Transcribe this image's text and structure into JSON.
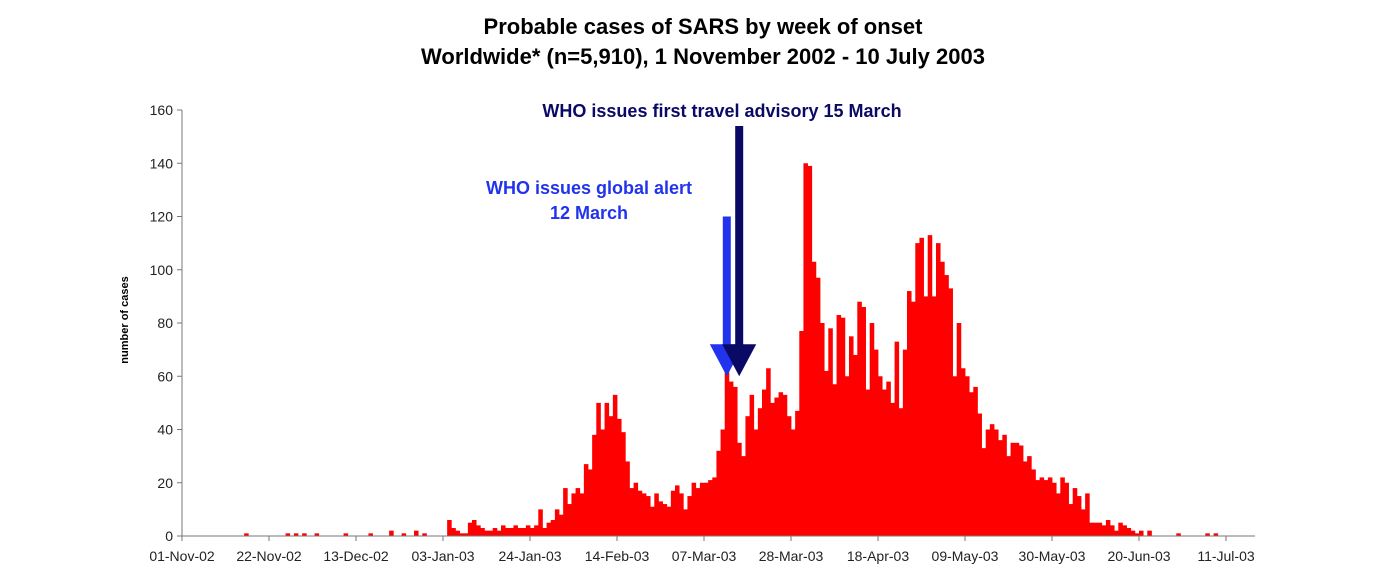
{
  "chart_data": {
    "type": "bar",
    "title": "Probable cases of SARS by week of onset",
    "subtitle": "Worldwide* (n=5,910), 1 November 2002 - 10 July 2003",
    "ylabel": "number of cases",
    "xlabel": "",
    "ylim": [
      0,
      160
    ],
    "y_ticks": [
      0,
      20,
      40,
      60,
      80,
      100,
      120,
      140,
      160
    ],
    "x_range_days": [
      "2002-11-01",
      "2003-07-18"
    ],
    "x_ticks": [
      {
        "date": "2002-11-01",
        "label": "01-Nov-02"
      },
      {
        "date": "2002-11-22",
        "label": "22-Nov-02"
      },
      {
        "date": "2002-12-13",
        "label": "13-Dec-02"
      },
      {
        "date": "2003-01-03",
        "label": "03-Jan-03"
      },
      {
        "date": "2003-01-24",
        "label": "24-Jan-03"
      },
      {
        "date": "2003-02-14",
        "label": "14-Feb-03"
      },
      {
        "date": "2003-03-07",
        "label": "07-Mar-03"
      },
      {
        "date": "2003-03-28",
        "label": "28-Mar-03"
      },
      {
        "date": "2003-04-18",
        "label": "18-Apr-03"
      },
      {
        "date": "2003-05-09",
        "label": "09-May-03"
      },
      {
        "date": "2003-05-30",
        "label": "30-May-03"
      },
      {
        "date": "2003-06-20",
        "label": "20-Jun-03"
      },
      {
        "date": "2003-07-11",
        "label": "11-Jul-03"
      }
    ],
    "series": [
      {
        "color": "#ff0000",
        "points": [
          [
            "2002-11-16",
            1
          ],
          [
            "2002-11-26",
            1
          ],
          [
            "2002-11-28",
            1
          ],
          [
            "2002-11-30",
            1
          ],
          [
            "2002-12-03",
            1
          ],
          [
            "2002-12-10",
            1
          ],
          [
            "2002-12-16",
            1
          ],
          [
            "2002-12-21",
            2
          ],
          [
            "2002-12-24",
            1
          ],
          [
            "2002-12-27",
            2
          ],
          [
            "2002-12-29",
            1
          ],
          [
            "2003-01-04",
            6
          ],
          [
            "2003-01-05",
            3
          ],
          [
            "2003-01-06",
            2
          ],
          [
            "2003-01-07",
            1
          ],
          [
            "2003-01-08",
            1
          ],
          [
            "2003-01-09",
            5
          ],
          [
            "2003-01-10",
            6
          ],
          [
            "2003-01-11",
            4
          ],
          [
            "2003-01-12",
            3
          ],
          [
            "2003-01-13",
            2
          ],
          [
            "2003-01-14",
            2
          ],
          [
            "2003-01-15",
            3
          ],
          [
            "2003-01-16",
            2
          ],
          [
            "2003-01-17",
            4
          ],
          [
            "2003-01-18",
            3
          ],
          [
            "2003-01-19",
            3
          ],
          [
            "2003-01-20",
            4
          ],
          [
            "2003-01-21",
            3
          ],
          [
            "2003-01-22",
            3
          ],
          [
            "2003-01-23",
            4
          ],
          [
            "2003-01-24",
            3
          ],
          [
            "2003-01-25",
            4
          ],
          [
            "2003-01-26",
            10
          ],
          [
            "2003-01-27",
            3
          ],
          [
            "2003-01-28",
            5
          ],
          [
            "2003-01-29",
            6
          ],
          [
            "2003-01-30",
            10
          ],
          [
            "2003-01-31",
            8
          ],
          [
            "2003-02-01",
            18
          ],
          [
            "2003-02-02",
            12
          ],
          [
            "2003-02-03",
            16
          ],
          [
            "2003-02-04",
            18
          ],
          [
            "2003-02-05",
            16
          ],
          [
            "2003-02-06",
            27
          ],
          [
            "2003-02-07",
            25
          ],
          [
            "2003-02-08",
            38
          ],
          [
            "2003-02-09",
            50
          ],
          [
            "2003-02-10",
            40
          ],
          [
            "2003-02-11",
            50
          ],
          [
            "2003-02-12",
            45
          ],
          [
            "2003-02-13",
            53
          ],
          [
            "2003-02-14",
            44
          ],
          [
            "2003-02-15",
            39
          ],
          [
            "2003-02-16",
            28
          ],
          [
            "2003-02-17",
            18
          ],
          [
            "2003-02-18",
            20
          ],
          [
            "2003-02-19",
            17
          ],
          [
            "2003-02-20",
            16
          ],
          [
            "2003-02-21",
            15
          ],
          [
            "2003-02-22",
            11
          ],
          [
            "2003-02-23",
            16
          ],
          [
            "2003-02-24",
            13
          ],
          [
            "2003-02-25",
            12
          ],
          [
            "2003-02-26",
            11
          ],
          [
            "2003-02-27",
            17
          ],
          [
            "2003-02-28",
            19
          ],
          [
            "2003-03-01",
            16
          ],
          [
            "2003-03-02",
            10
          ],
          [
            "2003-03-03",
            15
          ],
          [
            "2003-03-04",
            20
          ],
          [
            "2003-03-05",
            18
          ],
          [
            "2003-03-06",
            20
          ],
          [
            "2003-03-07",
            20
          ],
          [
            "2003-03-08",
            21
          ],
          [
            "2003-03-09",
            22
          ],
          [
            "2003-03-10",
            32
          ],
          [
            "2003-03-11",
            40
          ],
          [
            "2003-03-12",
            63
          ],
          [
            "2003-03-13",
            58
          ],
          [
            "2003-03-14",
            56
          ],
          [
            "2003-03-15",
            35
          ],
          [
            "2003-03-16",
            30
          ],
          [
            "2003-03-17",
            45
          ],
          [
            "2003-03-18",
            53
          ],
          [
            "2003-03-19",
            40
          ],
          [
            "2003-03-20",
            48
          ],
          [
            "2003-03-21",
            55
          ],
          [
            "2003-03-22",
            63
          ],
          [
            "2003-03-23",
            50
          ],
          [
            "2003-03-24",
            52
          ],
          [
            "2003-03-25",
            54
          ],
          [
            "2003-03-26",
            53
          ],
          [
            "2003-03-27",
            45
          ],
          [
            "2003-03-28",
            40
          ],
          [
            "2003-03-29",
            47
          ],
          [
            "2003-03-30",
            77
          ],
          [
            "2003-03-31",
            140
          ],
          [
            "2003-04-01",
            139
          ],
          [
            "2003-04-02",
            103
          ],
          [
            "2003-04-03",
            97
          ],
          [
            "2003-04-04",
            80
          ],
          [
            "2003-04-05",
            62
          ],
          [
            "2003-04-06",
            78
          ],
          [
            "2003-04-07",
            57
          ],
          [
            "2003-04-08",
            83
          ],
          [
            "2003-04-09",
            82
          ],
          [
            "2003-04-10",
            60
          ],
          [
            "2003-04-11",
            75
          ],
          [
            "2003-04-12",
            68
          ],
          [
            "2003-04-13",
            88
          ],
          [
            "2003-04-14",
            86
          ],
          [
            "2003-04-15",
            55
          ],
          [
            "2003-04-16",
            80
          ],
          [
            "2003-04-17",
            70
          ],
          [
            "2003-04-18",
            60
          ],
          [
            "2003-04-19",
            55
          ],
          [
            "2003-04-20",
            58
          ],
          [
            "2003-04-21",
            50
          ],
          [
            "2003-04-22",
            73
          ],
          [
            "2003-04-23",
            48
          ],
          [
            "2003-04-24",
            70
          ],
          [
            "2003-04-25",
            92
          ],
          [
            "2003-04-26",
            88
          ],
          [
            "2003-04-27",
            110
          ],
          [
            "2003-04-28",
            112
          ],
          [
            "2003-04-29",
            90
          ],
          [
            "2003-04-30",
            113
          ],
          [
            "2003-05-01",
            90
          ],
          [
            "2003-05-02",
            110
          ],
          [
            "2003-05-03",
            103
          ],
          [
            "2003-05-04",
            98
          ],
          [
            "2003-05-05",
            93
          ],
          [
            "2003-05-06",
            60
          ],
          [
            "2003-05-07",
            80
          ],
          [
            "2003-05-08",
            63
          ],
          [
            "2003-05-09",
            60
          ],
          [
            "2003-05-10",
            54
          ],
          [
            "2003-05-11",
            56
          ],
          [
            "2003-05-12",
            46
          ],
          [
            "2003-05-13",
            33
          ],
          [
            "2003-05-14",
            40
          ],
          [
            "2003-05-15",
            42
          ],
          [
            "2003-05-16",
            40
          ],
          [
            "2003-05-17",
            36
          ],
          [
            "2003-05-18",
            38
          ],
          [
            "2003-05-19",
            30
          ],
          [
            "2003-05-20",
            35
          ],
          [
            "2003-05-21",
            35
          ],
          [
            "2003-05-22",
            34
          ],
          [
            "2003-05-23",
            28
          ],
          [
            "2003-05-24",
            30
          ],
          [
            "2003-05-25",
            25
          ],
          [
            "2003-05-26",
            21
          ],
          [
            "2003-05-27",
            22
          ],
          [
            "2003-05-28",
            21
          ],
          [
            "2003-05-29",
            22
          ],
          [
            "2003-05-30",
            20
          ],
          [
            "2003-05-31",
            16
          ],
          [
            "2003-06-01",
            22
          ],
          [
            "2003-06-02",
            20
          ],
          [
            "2003-06-03",
            12
          ],
          [
            "2003-06-04",
            18
          ],
          [
            "2003-06-05",
            15
          ],
          [
            "2003-06-06",
            10
          ],
          [
            "2003-06-07",
            16
          ],
          [
            "2003-06-08",
            5
          ],
          [
            "2003-06-09",
            5
          ],
          [
            "2003-06-10",
            5
          ],
          [
            "2003-06-11",
            4
          ],
          [
            "2003-06-12",
            6
          ],
          [
            "2003-06-13",
            4
          ],
          [
            "2003-06-14",
            2
          ],
          [
            "2003-06-15",
            5
          ],
          [
            "2003-06-16",
            4
          ],
          [
            "2003-06-17",
            3
          ],
          [
            "2003-06-18",
            2
          ],
          [
            "2003-06-19",
            1
          ],
          [
            "2003-06-20",
            2
          ],
          [
            "2003-06-22",
            2
          ],
          [
            "2003-06-29",
            1
          ],
          [
            "2003-07-06",
            1
          ],
          [
            "2003-07-08",
            1
          ]
        ]
      }
    ],
    "annotations": [
      {
        "lines": [
          "WHO issues global alert",
          "12 March"
        ],
        "color": "#2233ee",
        "date": "2003-03-12",
        "arrow_top": 120
      },
      {
        "lines": [
          "WHO issues first travel advisory 15 March"
        ],
        "color": "#0a0a66",
        "date": "2003-03-15",
        "arrow_top": 154
      }
    ],
    "grid": false,
    "legend": "none"
  }
}
